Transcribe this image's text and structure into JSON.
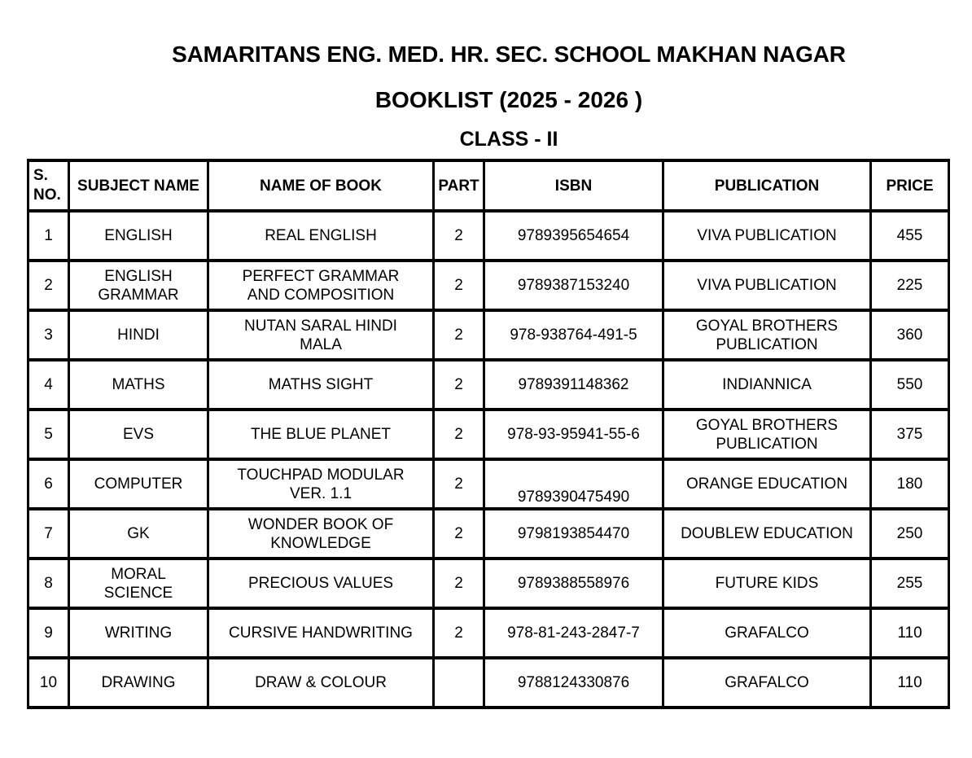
{
  "document": {
    "title": "SAMARITANS ENG. MED. HR. SEC. SCHOOL MAKHAN NAGAR",
    "subtitle": "BOOKLIST (2025 - 2026 )",
    "class_heading": "CLASS - II"
  },
  "table": {
    "headers": [
      "S.\nNO.",
      "SUBJECT NAME",
      "NAME OF BOOK",
      "PART",
      "ISBN",
      "PUBLICATION",
      "PRICE"
    ],
    "column_names": [
      "s-no",
      "subject-name",
      "book-name",
      "part",
      "isbn",
      "publication",
      "price"
    ],
    "rows": [
      [
        "1",
        "ENGLISH",
        "REAL ENGLISH",
        "2",
        "9789395654654",
        "VIVA PUBLICATION",
        "455"
      ],
      [
        "2",
        "ENGLISH\nGRAMMAR",
        "PERFECT GRAMMAR\nAND COMPOSITION",
        "2",
        "9789387153240",
        "VIVA PUBLICATION",
        "225"
      ],
      [
        "3",
        "HINDI",
        "NUTAN SARAL HINDI\nMALA",
        "2",
        "978-938764-491-5",
        "GOYAL BROTHERS\nPUBLICATION",
        "360"
      ],
      [
        "4",
        "MATHS",
        "MATHS SIGHT",
        "2",
        "9789391148362",
        "INDIANNICA",
        "550"
      ],
      [
        "5",
        "EVS",
        "THE BLUE PLANET",
        "2",
        "978-93-95941-55-6",
        "GOYAL BROTHERS\nPUBLICATION",
        "375"
      ],
      [
        "6",
        "COMPUTER",
        "TOUCHPAD MODULAR\nVER. 1.1",
        "2",
        "9789390475490",
        "ORANGE EDUCATION",
        "180"
      ],
      [
        "7",
        "GK",
        "WONDER BOOK OF\nKNOWLEDGE",
        "2",
        "9798193854470",
        "DOUBLEW EDUCATION",
        "250"
      ],
      [
        "8",
        "MORAL\nSCIENCE",
        "PRECIOUS VALUES",
        "2",
        "9789388558976",
        "FUTURE KIDS",
        "255"
      ],
      [
        "9",
        "WRITING",
        "CURSIVE HANDWRITING",
        "2",
        "978-81-243-2847-7",
        "GRAFALCO",
        "110"
      ],
      [
        "10",
        "DRAWING",
        "DRAW & COLOUR",
        "",
        "9788124330876",
        "GRAFALCO",
        "110"
      ]
    ]
  },
  "colors": {
    "text": "#000000",
    "border": "#000000",
    "background": "#ffffff"
  }
}
